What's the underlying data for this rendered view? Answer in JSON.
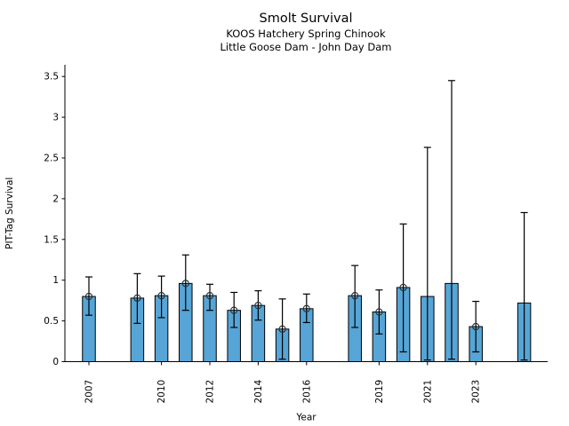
{
  "window": {
    "title": "Smolt Survival figure"
  },
  "chart_data": {
    "type": "bar",
    "title": "Smolt Survival",
    "subtitle1": "KOOS Hatchery Spring Chinook",
    "subtitle2": "Little Goose Dam - John Day Dam",
    "xlabel": "Year",
    "ylabel": "PIT-Tag Survival",
    "ylim": [
      0,
      3.64
    ],
    "xlim": [
      2006,
      2026
    ],
    "yticks": [
      0,
      0.5,
      1,
      1.5,
      2,
      2.5,
      3,
      3.5
    ],
    "ytick_labels": [
      "0",
      "0.5",
      "1",
      "1.5",
      "2",
      "2.5",
      "3",
      "3.5"
    ],
    "xticks": [
      2007,
      2010,
      2012,
      2014,
      2016,
      2019,
      2021,
      2023
    ],
    "xtick_labels": [
      "2007",
      "2010",
      "2012",
      "2014",
      "2016",
      "2019",
      "2021",
      "2023"
    ],
    "grid": false,
    "legend": null,
    "series": [
      {
        "name": "PIT-Tag Survival",
        "bars": [
          {
            "year": 2007,
            "value": 0.8,
            "ci_low": 0.57,
            "ci_high": 1.04,
            "marker": true
          },
          {
            "year": 2009,
            "value": 0.78,
            "ci_low": 0.47,
            "ci_high": 1.08,
            "marker": true
          },
          {
            "year": 2010,
            "value": 0.81,
            "ci_low": 0.54,
            "ci_high": 1.05,
            "marker": true
          },
          {
            "year": 2011,
            "value": 0.96,
            "ci_low": 0.63,
            "ci_high": 1.31,
            "marker": true
          },
          {
            "year": 2012,
            "value": 0.81,
            "ci_low": 0.63,
            "ci_high": 0.95,
            "marker": true
          },
          {
            "year": 2013,
            "value": 0.63,
            "ci_low": 0.42,
            "ci_high": 0.85,
            "marker": true
          },
          {
            "year": 2014,
            "value": 0.69,
            "ci_low": 0.51,
            "ci_high": 0.87,
            "marker": true
          },
          {
            "year": 2015,
            "value": 0.4,
            "ci_low": 0.03,
            "ci_high": 0.77,
            "marker": true
          },
          {
            "year": 2016,
            "value": 0.65,
            "ci_low": 0.48,
            "ci_high": 0.83,
            "marker": true
          },
          {
            "year": 2018,
            "value": 0.81,
            "ci_low": 0.42,
            "ci_high": 1.18,
            "marker": true
          },
          {
            "year": 2019,
            "value": 0.61,
            "ci_low": 0.34,
            "ci_high": 0.88,
            "marker": true
          },
          {
            "year": 2020,
            "value": 0.91,
            "ci_low": 0.12,
            "ci_high": 1.69,
            "marker": true
          },
          {
            "year": 2021,
            "value": 0.8,
            "ci_low": 0.02,
            "ci_high": 2.63,
            "marker": false
          },
          {
            "year": 2022,
            "value": 0.96,
            "ci_low": 0.03,
            "ci_high": 3.45,
            "marker": false
          },
          {
            "year": 2023,
            "value": 0.43,
            "ci_low": 0.12,
            "ci_high": 0.74,
            "marker": true
          },
          {
            "year": 2025,
            "value": 0.72,
            "ci_low": 0.02,
            "ci_high": 1.83,
            "marker": false
          }
        ]
      }
    ],
    "colors": {
      "bar_fill": "#56a5d6",
      "bar_edge": "#000000",
      "error_bar": "#000000",
      "marker_edge": "#2b2b2b",
      "axis": "#000000",
      "text": "#000000"
    }
  }
}
